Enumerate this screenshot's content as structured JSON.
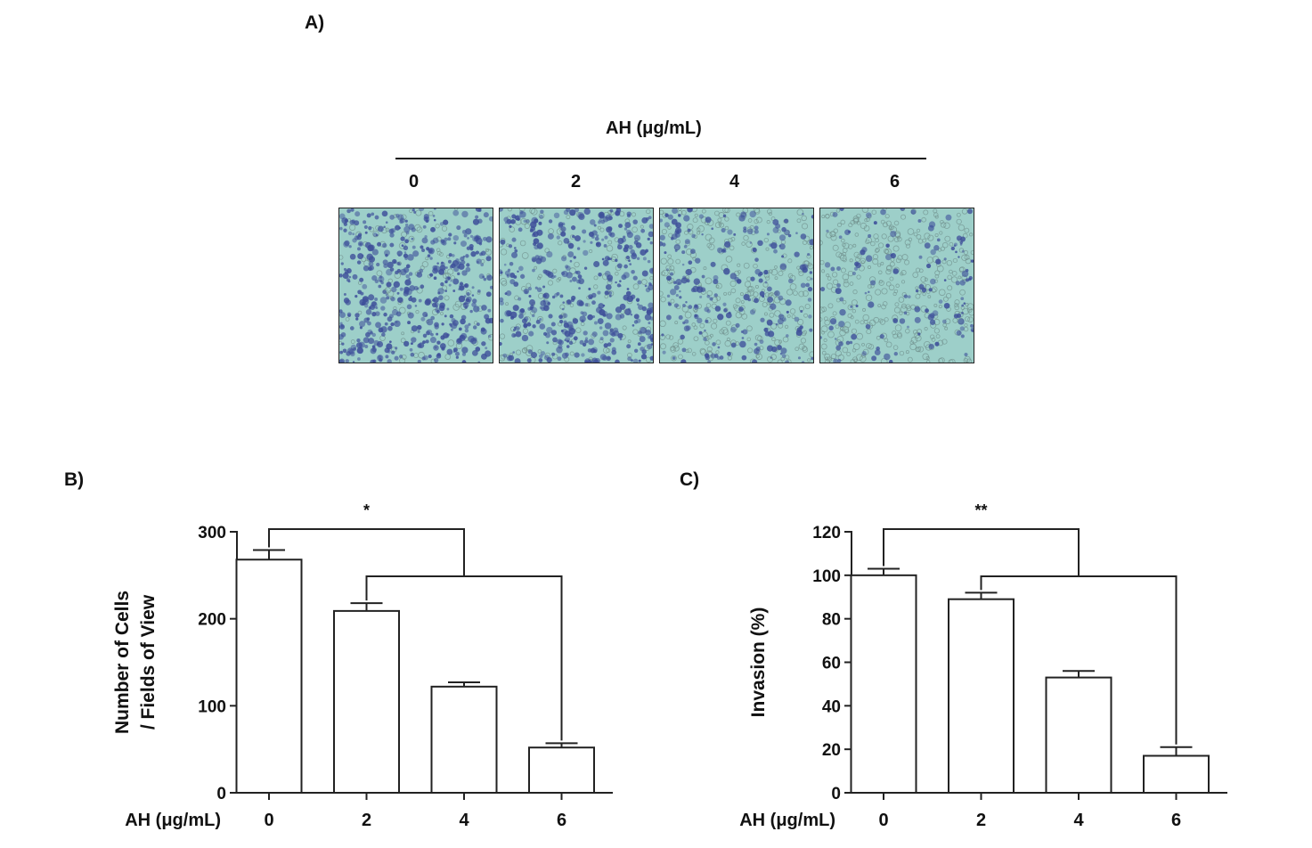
{
  "panel_a": {
    "letter": "A)",
    "header": "AH (μg/mL)",
    "doses": [
      "0",
      "2",
      "4",
      "6"
    ],
    "micrographs": [
      {
        "dose": "0",
        "cell_density": 0.95
      },
      {
        "dose": "2",
        "cell_density": 0.85
      },
      {
        "dose": "4",
        "cell_density": 0.45
      },
      {
        "dose": "6",
        "cell_density": 0.25
      }
    ],
    "colors": {
      "background": "#9dcfc9",
      "cells": "#3e4f9a"
    }
  },
  "chart_data": [
    {
      "panel": "B)",
      "type": "bar",
      "categories": [
        "0",
        "2",
        "4",
        "6"
      ],
      "values": [
        268,
        209,
        122,
        52
      ],
      "errors": [
        11,
        9,
        5,
        5
      ],
      "xlabel": "AH (μg/mL)",
      "ylabel": [
        "Number of Cells",
        "/ Fields of View"
      ],
      "ylim": [
        0,
        300
      ],
      "yticks": [
        0,
        100,
        200,
        300
      ],
      "significance": "*",
      "bar_color": "#ffffff",
      "grid": false
    },
    {
      "panel": "C)",
      "type": "bar",
      "categories": [
        "0",
        "2",
        "4",
        "6"
      ],
      "values": [
        100,
        89,
        53,
        17
      ],
      "errors": [
        3,
        3,
        3,
        4
      ],
      "xlabel": "AH (μg/mL)",
      "ylabel": [
        "Invasion (%)"
      ],
      "ylim": [
        0,
        120
      ],
      "yticks": [
        0,
        20,
        40,
        60,
        80,
        100,
        120
      ],
      "significance": "**",
      "bar_color": "#ffffff",
      "grid": false
    }
  ]
}
